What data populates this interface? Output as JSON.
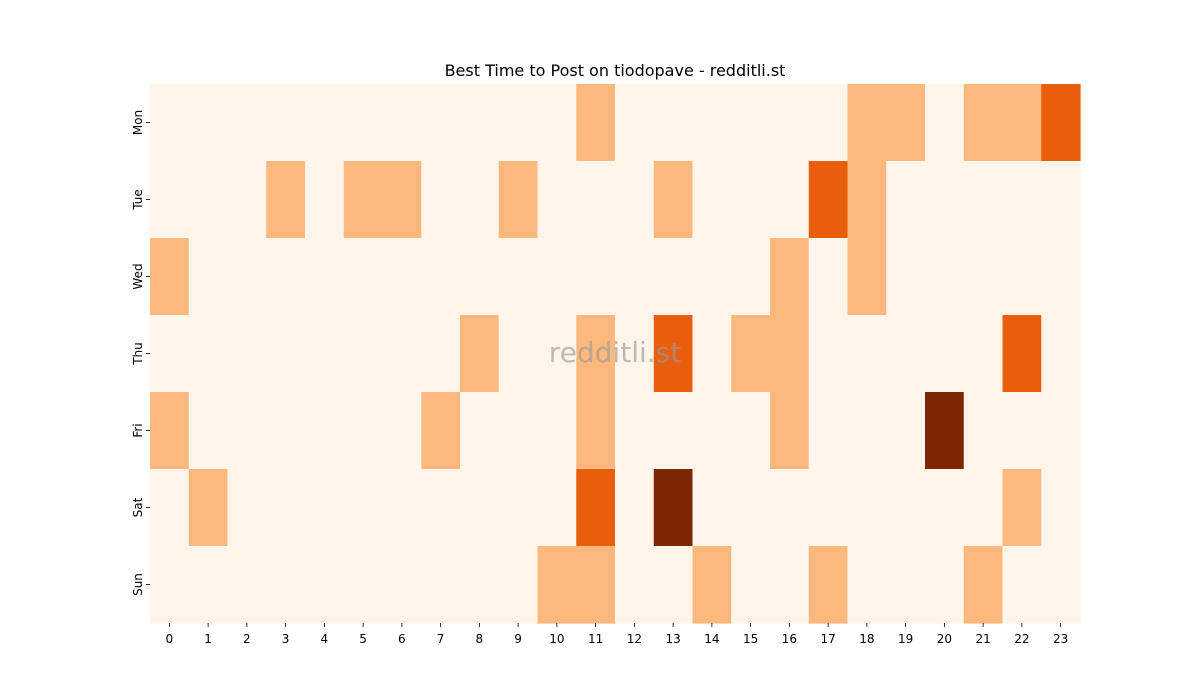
{
  "chart_data": {
    "type": "heatmap",
    "title": "Best Time to Post on tiodopave - redditli.st",
    "xlabel": "",
    "ylabel": "",
    "x_categories": [
      "0",
      "1",
      "2",
      "3",
      "4",
      "5",
      "6",
      "7",
      "8",
      "9",
      "10",
      "11",
      "12",
      "13",
      "14",
      "15",
      "16",
      "17",
      "18",
      "19",
      "20",
      "21",
      "22",
      "23"
    ],
    "y_categories": [
      "Mon",
      "Tue",
      "Wed",
      "Thu",
      "Fri",
      "Sat",
      "Sun"
    ],
    "values": [
      [
        0,
        0,
        0,
        0,
        0,
        0,
        0,
        0,
        0,
        0,
        0,
        1,
        0,
        0,
        0,
        0,
        0,
        0,
        1,
        1,
        0,
        1,
        1,
        2
      ],
      [
        0,
        0,
        0,
        1,
        0,
        1,
        1,
        0,
        0,
        1,
        0,
        0,
        0,
        1,
        0,
        0,
        0,
        2,
        1,
        0,
        0,
        0,
        0,
        0
      ],
      [
        1,
        0,
        0,
        0,
        0,
        0,
        0,
        0,
        0,
        0,
        0,
        0,
        0,
        0,
        0,
        0,
        1,
        0,
        1,
        0,
        0,
        0,
        0,
        0
      ],
      [
        0,
        0,
        0,
        0,
        0,
        0,
        0,
        0,
        1,
        0,
        0,
        1,
        0,
        2,
        0,
        1,
        1,
        0,
        0,
        0,
        0,
        0,
        2,
        0
      ],
      [
        1,
        0,
        0,
        0,
        0,
        0,
        0,
        1,
        0,
        0,
        0,
        1,
        0,
        0,
        0,
        0,
        1,
        0,
        0,
        0,
        3,
        0,
        0,
        0
      ],
      [
        0,
        1,
        0,
        0,
        0,
        0,
        0,
        0,
        0,
        0,
        0,
        2,
        0,
        3,
        0,
        0,
        0,
        0,
        0,
        0,
        0,
        0,
        1,
        0
      ],
      [
        0,
        0,
        0,
        0,
        0,
        0,
        0,
        0,
        0,
        0,
        1,
        1,
        0,
        0,
        1,
        0,
        0,
        1,
        0,
        0,
        0,
        1,
        0,
        0
      ]
    ],
    "value_range": [
      0,
      3
    ],
    "colormap": "Oranges",
    "level_colors": [
      "#fff5eb",
      "#fdb97d",
      "#e95e0d",
      "#7f2704"
    ],
    "colorbar": false,
    "grid": false
  },
  "watermark": "redditli.st"
}
